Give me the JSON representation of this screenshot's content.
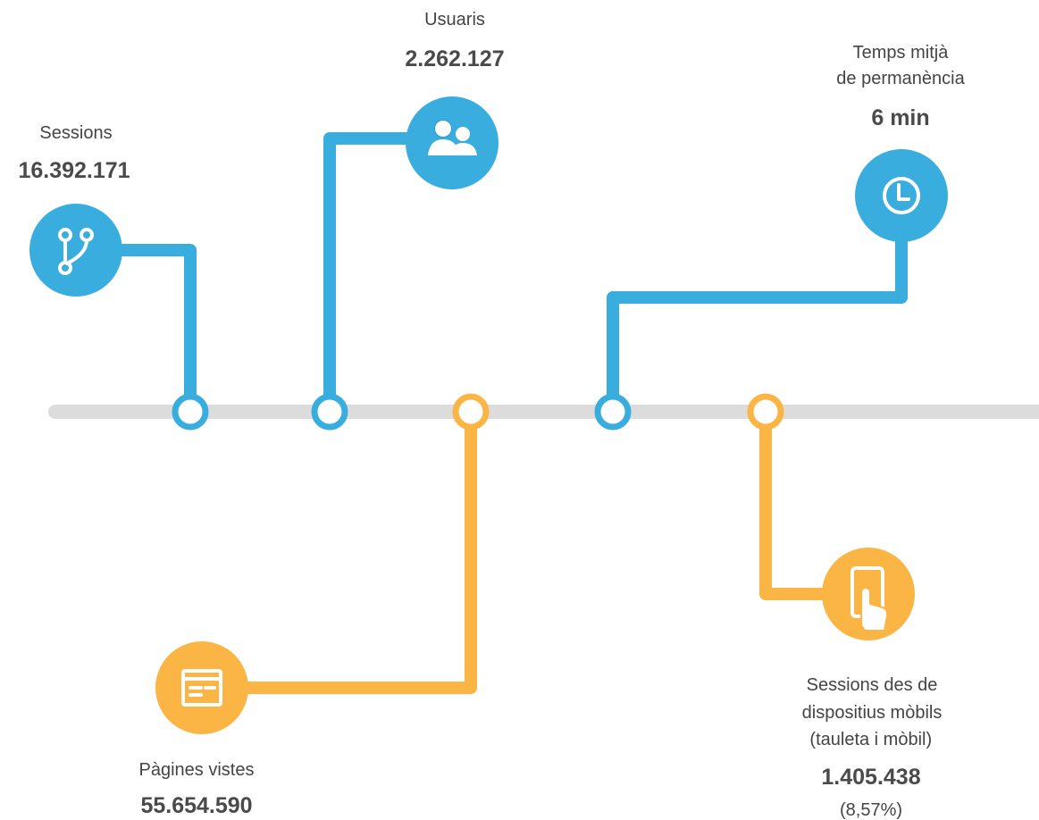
{
  "metrics": [
    {
      "label": [
        "Sessions"
      ],
      "value": "16.392.171"
    },
    {
      "label": [
        "Usuaris"
      ],
      "value": "2.262.127"
    },
    {
      "label": [
        "Temps mitjà",
        "de permanència"
      ],
      "value": "6 min"
    },
    {
      "label": [
        "Pàgines vistes"
      ],
      "value": "55.654.590"
    },
    {
      "label": [
        "Sessions des de",
        "dispositius mòbils",
        " (tauleta i mòbil)"
      ],
      "value": "1.405.438",
      "note": "(8,57%)"
    }
  ]
}
